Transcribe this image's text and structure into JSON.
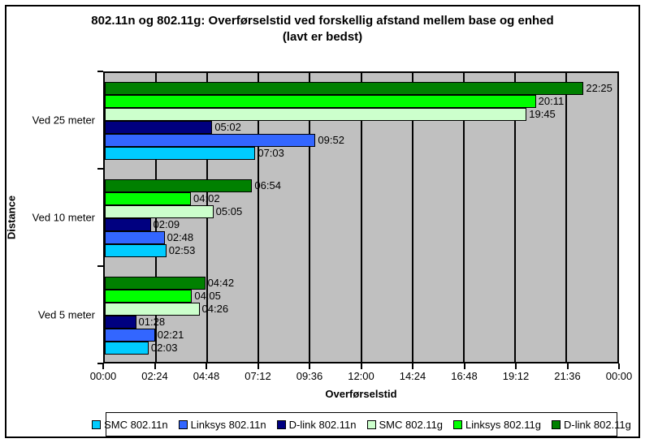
{
  "title": {
    "line1": "802.11n og 802.11g: Overførselstid ved forskellig afstand mellem base og enhed",
    "line2": "(lavt er bedst)"
  },
  "chart_data": {
    "type": "bar",
    "orientation": "horizontal",
    "title": "802.11n og 802.11g: Overførselstid ved forskellig afstand mellem base og enhed (lavt er bedst)",
    "xlabel": "Overførselstid",
    "ylabel": "Distance",
    "categories": [
      "Ved 25 meter",
      "Ved 10 meter",
      "Ved 5 meter"
    ],
    "series": [
      {
        "name": "SMC 802.11n",
        "color": "#00ccff",
        "values": [
          "07:03",
          "02:53",
          "02:03"
        ]
      },
      {
        "name": "Linksys 802.11n",
        "color": "#3366ff",
        "values": [
          "09:52",
          "02:48",
          "02:21"
        ]
      },
      {
        "name": "D-link 802.11n",
        "color": "#000080",
        "values": [
          "05:02",
          "02:09",
          "01:28"
        ]
      },
      {
        "name": "SMC 802.11g",
        "color": "#ccffcc",
        "values": [
          "19:45",
          "05:05",
          "04:26"
        ]
      },
      {
        "name": "Linksys 802.11g",
        "color": "#00ff00",
        "values": [
          "20:11",
          "04:02",
          "04:05"
        ]
      },
      {
        "name": "D-link 802.11g",
        "color": "#008000",
        "values": [
          "22:25",
          "06:54",
          "04:42"
        ]
      }
    ],
    "x_ticks": [
      "00:00",
      "02:24",
      "04:48",
      "07:12",
      "09:36",
      "12:00",
      "14:24",
      "16:48",
      "19:12",
      "21:36",
      "00:00"
    ],
    "x_max_seconds": 1440,
    "value_format": "mm:ss",
    "legend_position": "bottom",
    "grid": true,
    "plot_background": "#c0c0c0",
    "gridline_color": "#000000",
    "note": "Bars in each category are drawn bottom-to-top in series order (first series at bottom)."
  }
}
